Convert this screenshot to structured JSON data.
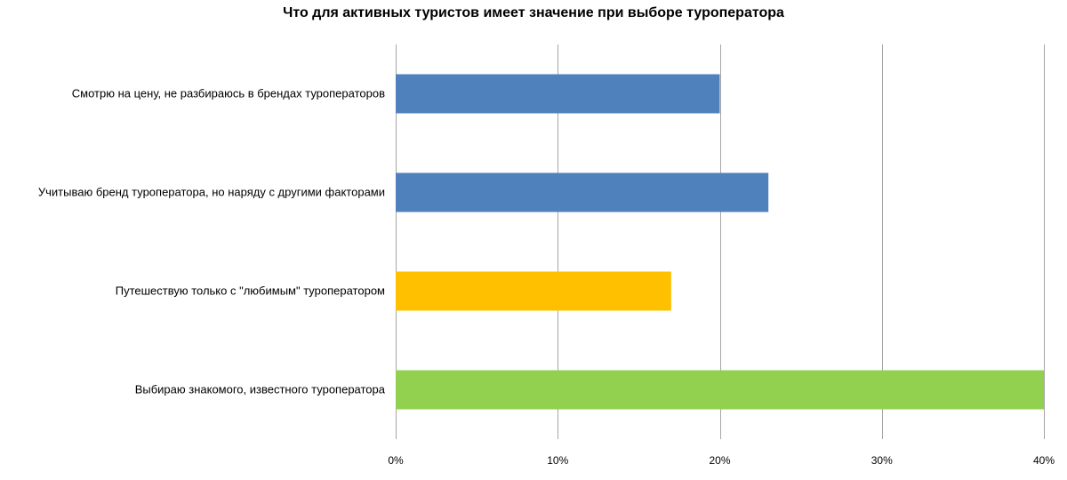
{
  "chart_data": {
    "type": "bar",
    "orientation": "horizontal",
    "title": "Что для активных туристов имеет значение при выборе туроператора",
    "xlabel": "",
    "ylabel": "",
    "categories": [
      "Смотрю на цену, не разбираюсь в брендах туроператоров",
      "Учитываю бренд туроператора, но наряду с другими факторами",
      "Путешествую только с \"любимым\" туроператором",
      "Выбираю знакомого, известного туроператора"
    ],
    "values": [
      20,
      23,
      17,
      40
    ],
    "bar_colors": [
      "#4f81bd",
      "#4f81bd",
      "#ffc000",
      "#92d050"
    ],
    "xlim": [
      0,
      40
    ],
    "x_ticks": [
      0,
      10,
      20,
      30,
      40
    ],
    "x_tick_labels": [
      "0%",
      "10%",
      "20%",
      "30%",
      "40%"
    ],
    "grid": true,
    "grid_color": "#a6a6a6",
    "legend": "none"
  }
}
